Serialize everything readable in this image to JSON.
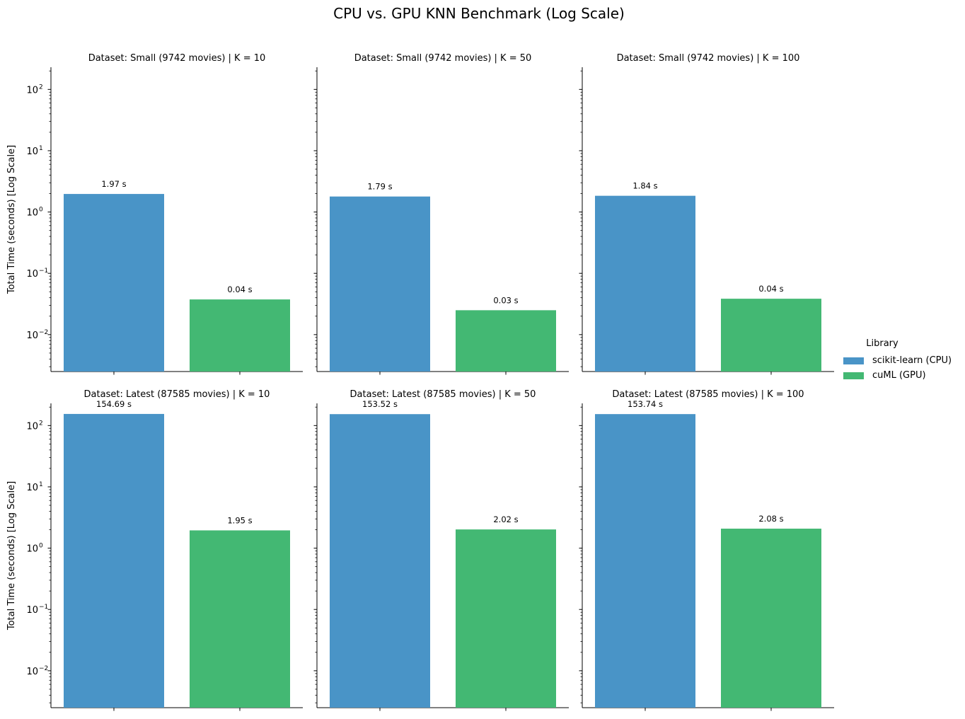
{
  "chart_data": {
    "type": "bar",
    "title": "CPU vs. GPU KNN Benchmark (Log Scale)",
    "ylabel": "Total Time (seconds) [Log Scale]",
    "yscale": "log",
    "ylim": [
      0.0025,
      230
    ],
    "y_ticks": [
      {
        "value": 0.01,
        "base": "10",
        "exp": "−2"
      },
      {
        "value": 0.1,
        "base": "10",
        "exp": "−1"
      },
      {
        "value": 1,
        "base": "10",
        "exp": "0"
      },
      {
        "value": 10,
        "base": "10",
        "exp": "1"
      },
      {
        "value": 100,
        "base": "10",
        "exp": "2"
      }
    ],
    "legend": {
      "title": "Library",
      "placement": "right",
      "entries": [
        {
          "name": "scikit-learn (CPU)",
          "color": "#4994c7"
        },
        {
          "name": "cuML (GPU)",
          "color": "#43b873"
        }
      ]
    },
    "panels": [
      {
        "title": "Dataset: Small (9742 movies) | K = 10",
        "values": [
          1.97,
          0.0375
        ],
        "labels": [
          "1.97 s",
          "0.04 s"
        ]
      },
      {
        "title": "Dataset: Small (9742 movies) | K = 50",
        "values": [
          1.79,
          0.025
        ],
        "labels": [
          "1.79 s",
          "0.03 s"
        ]
      },
      {
        "title": "Dataset: Small (9742 movies) | K = 100",
        "values": [
          1.84,
          0.0385
        ],
        "labels": [
          "1.84 s",
          "0.04 s"
        ]
      },
      {
        "title": "Dataset: Latest (87585 movies) | K = 10",
        "values": [
          154.69,
          1.95
        ],
        "labels": [
          "154.69 s",
          "1.95 s"
        ]
      },
      {
        "title": "Dataset: Latest (87585 movies) | K = 50",
        "values": [
          153.52,
          2.02
        ],
        "labels": [
          "153.52 s",
          "2.02 s"
        ]
      },
      {
        "title": "Dataset: Latest (87585 movies) | K = 100",
        "values": [
          153.74,
          2.08
        ],
        "labels": [
          "153.74 s",
          "2.08 s"
        ]
      }
    ]
  }
}
